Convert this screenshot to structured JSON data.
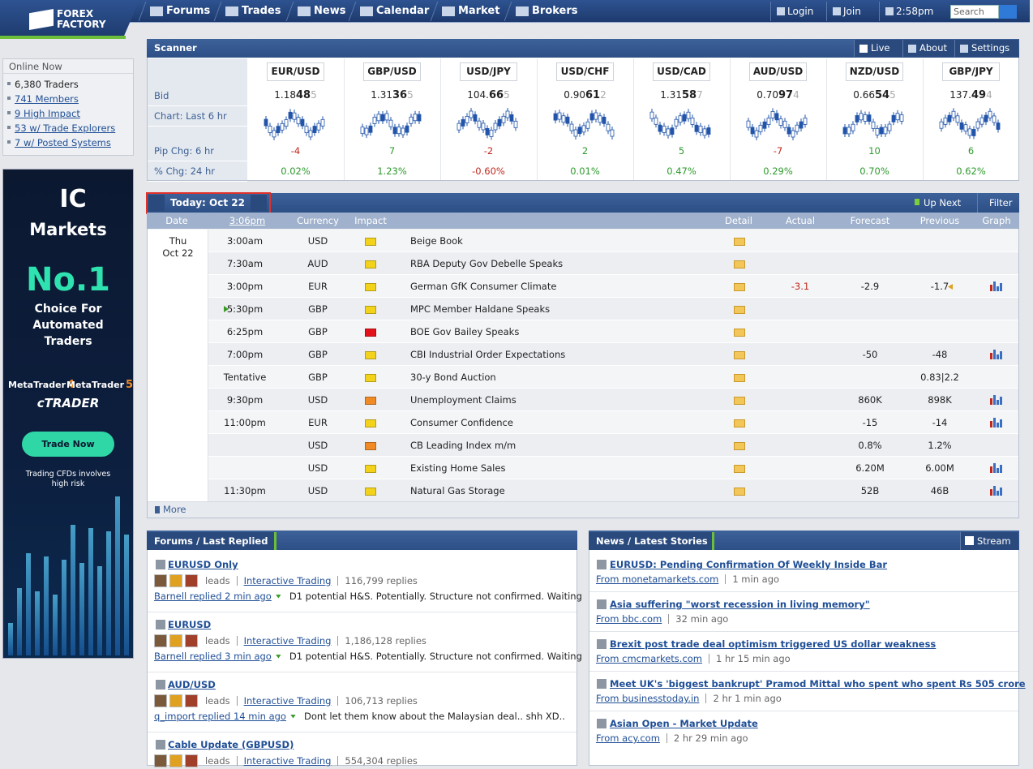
{
  "nav": {
    "logo": [
      "FOREX",
      "FACTORY"
    ],
    "items": [
      "Forums",
      "Trades",
      "News",
      "Calendar",
      "Market",
      "Brokers"
    ],
    "login": "Login",
    "join": "Join",
    "time": "2:58pm",
    "search": "Search"
  },
  "sidebar": {
    "title": "Online Now",
    "items": [
      "6,380 Traders",
      "741 Members",
      "9 High Impact",
      "53 w/ Trade Explorers",
      "7 w/ Posted Systems"
    ]
  },
  "ad": {
    "brand_ic": "IC",
    "brand": "Markets",
    "headline": "No.1",
    "tagline": [
      "Choice For",
      "Automated",
      "Traders"
    ],
    "platforms": [
      {
        "name": "MetaTrader",
        "version": "4"
      },
      {
        "name": "MetaTrader",
        "version": "5"
      }
    ],
    "ctrader": "cTRADER",
    "button": "Trade Now",
    "disclaimer": [
      "Trading CFDs involves",
      "high risk"
    ]
  },
  "scanner": {
    "title": "Scanner",
    "buttons": [
      "Live",
      "About",
      "Settings"
    ],
    "row_labels": [
      "Bid",
      "Chart: Last 6 hr",
      "Pip Chg: 6 hr",
      "% Chg: 24 hr"
    ],
    "pairs": [
      {
        "name": "EUR/USD",
        "bid": [
          "1.18",
          "48",
          "5"
        ],
        "pip": "-4",
        "pct": "0.02%"
      },
      {
        "name": "GBP/USD",
        "bid": [
          "1.31",
          "36",
          "5"
        ],
        "pip": "7",
        "pct": "1.23%"
      },
      {
        "name": "USD/JPY",
        "bid": [
          "104.",
          "66",
          "5"
        ],
        "pip": "-2",
        "pct": "-0.60%"
      },
      {
        "name": "USD/CHF",
        "bid": [
          "0.90",
          "61",
          "2"
        ],
        "pip": "2",
        "pct": "0.01%"
      },
      {
        "name": "USD/CAD",
        "bid": [
          "1.31",
          "58",
          "7"
        ],
        "pip": "5",
        "pct": "0.47%"
      },
      {
        "name": "AUD/USD",
        "bid": [
          "0.70",
          "97",
          "4"
        ],
        "pip": "-7",
        "pct": "0.29%"
      },
      {
        "name": "NZD/USD",
        "bid": [
          "0.66",
          "54",
          "5"
        ],
        "pip": "10",
        "pct": "0.70%"
      },
      {
        "name": "GBP/JPY",
        "bid": [
          "137.",
          "49",
          "4"
        ],
        "pip": "6",
        "pct": "0.62%"
      }
    ]
  },
  "calendar": {
    "today": "Today: Oct 22",
    "up_next": "Up Next",
    "filter": "Filter",
    "columns": [
      "Date",
      "3:06pm",
      "Currency",
      "Impact",
      "Detail",
      "Actual",
      "Forecast",
      "Previous",
      "Graph"
    ],
    "day": "Thu",
    "date": "Oct 22",
    "more": "More",
    "rows": [
      {
        "time": "3:00am",
        "currency": "USD",
        "impact": "#f2d21b",
        "event": "Beige Book"
      },
      {
        "time": "7:30am",
        "currency": "AUD",
        "impact": "#f2d21b",
        "event": "RBA Deputy Gov Debelle Speaks"
      },
      {
        "time": "3:00pm",
        "currency": "EUR",
        "impact": "#f2d21b",
        "event": "German GfK Consumer Climate",
        "actual": "-3.1",
        "actual_color": "#c0281e",
        "forecast": "-2.9",
        "previous": "-1.7",
        "revised": true,
        "graph": true
      },
      {
        "time": "5:30pm",
        "currency": "GBP",
        "impact": "#f2d21b",
        "event": "MPC Member Haldane Speaks",
        "next": true
      },
      {
        "time": "6:25pm",
        "currency": "GBP",
        "impact": "#e3131b",
        "event": "BOE Gov Bailey Speaks"
      },
      {
        "time": "7:00pm",
        "currency": "GBP",
        "impact": "#f2d21b",
        "event": "CBI Industrial Order Expectations",
        "forecast": "-50",
        "previous": "-48",
        "graph": true
      },
      {
        "time": "Tentative",
        "currency": "GBP",
        "impact": "#f2d21b",
        "event": "30-y Bond Auction",
        "previous": "0.83|2.2"
      },
      {
        "time": "9:30pm",
        "currency": "USD",
        "impact": "#f08a24",
        "event": "Unemployment Claims",
        "forecast": "860K",
        "previous": "898K",
        "graph": true
      },
      {
        "time": "11:00pm",
        "currency": "EUR",
        "impact": "#f2d21b",
        "event": "Consumer Confidence",
        "forecast": "-15",
        "previous": "-14",
        "graph": true
      },
      {
        "currency": "USD",
        "impact": "#f08a24",
        "event": "CB Leading Index m/m",
        "forecast": "0.8%",
        "previous": "1.2%"
      },
      {
        "currency": "USD",
        "impact": "#f2d21b",
        "event": "Existing Home Sales",
        "forecast": "6.20M",
        "previous": "6.00M",
        "graph": true
      },
      {
        "time": "11:30pm",
        "currency": "USD",
        "impact": "#f2d21b",
        "event": "Natural Gas Storage",
        "forecast": "52B",
        "previous": "46B",
        "graph": true
      }
    ]
  },
  "forums": {
    "title": "Forums / Last Replied",
    "threads": [
      {
        "title": "EURUSD Only",
        "leads": "leads",
        "category": "Interactive Trading",
        "replies": "116,799 replies",
        "last": "Barnell replied 2 min ago",
        "snippet": "D1 potential H&S. Potentially. Structure not confirmed. Waiting"
      },
      {
        "title": "EURUSD",
        "leads": "leads",
        "category": "Interactive Trading",
        "replies": "1,186,128 replies",
        "last": "Barnell replied 3 min ago",
        "snippet": "D1 potential H&S. Potentially. Structure not confirmed. Waiting"
      },
      {
        "title": "AUD/USD",
        "leads": "leads",
        "category": "Interactive Trading",
        "replies": "106,713 replies",
        "last": "q_import replied 14 min ago",
        "snippet": "Dont let them know about the Malaysian deal.. shh XD.."
      },
      {
        "title": "Cable Update (GBPUSD)",
        "leads": "leads",
        "category": "Interactive Trading",
        "replies": "554,304 replies"
      }
    ]
  },
  "news": {
    "title": "News / Latest Stories",
    "stream": "Stream",
    "stories": [
      {
        "title": "EURUSD: Pending Confirmation Of Weekly Inside Bar",
        "source": "From monetamarkets.com",
        "age": "1 min ago"
      },
      {
        "title": "Asia suffering \"worst recession in living memory\"",
        "source": "From bbc.com",
        "age": "32 min ago"
      },
      {
        "title": "Brexit post trade deal optimism triggered US dollar weakness",
        "source": "From cmcmarkets.com",
        "age": "1 hr 15 min ago"
      },
      {
        "title": "Meet UK's 'biggest bankrupt' Pramod Mittal who spent who spent Rs 505 crore",
        "source": "From businesstoday.in",
        "age": "2 hr 1 min ago"
      },
      {
        "title": "Asian Open - Market Update",
        "source": "From acy.com",
        "age": "2 hr 29 min ago"
      }
    ]
  }
}
